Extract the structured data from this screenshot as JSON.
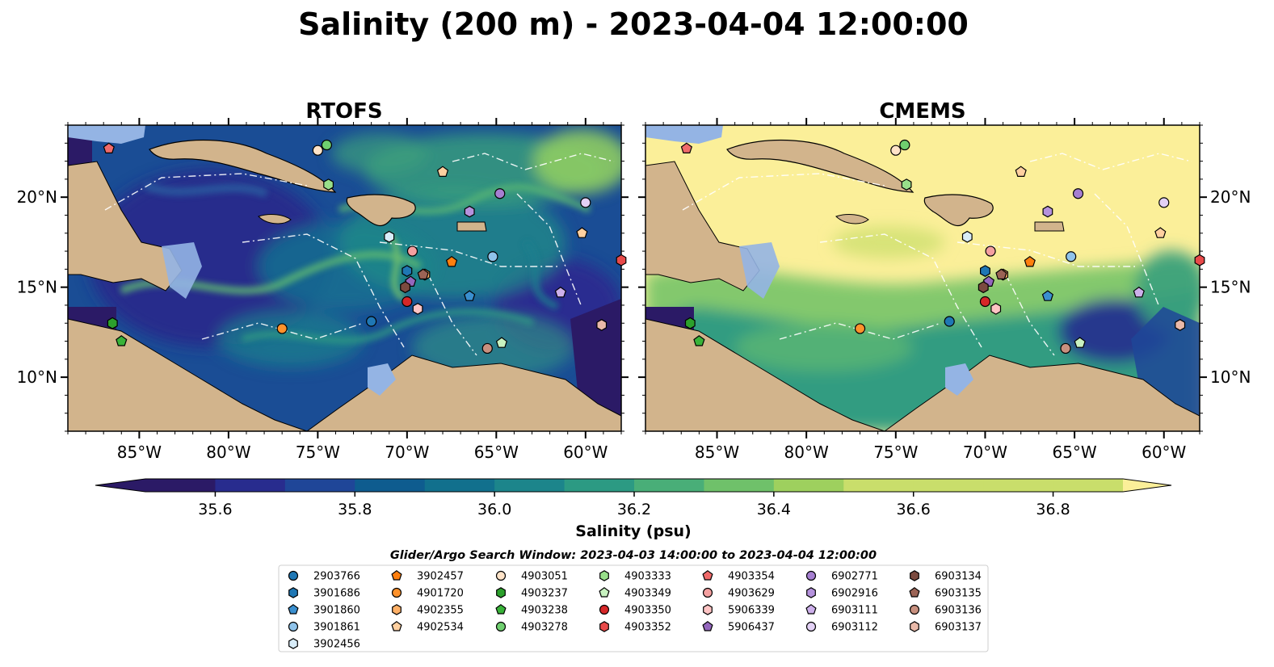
{
  "figure": {
    "title": "Salinity (200 m) - 2023-04-04 12:00:00",
    "search_window": "Glider/Argo Search Window: 2023-04-03 14:00:00 to 2023-04-04 12:00:00"
  },
  "colors": {
    "land": "#d2b48c",
    "shelf": "#94b4e4",
    "colormap": [
      "#2b1a66",
      "#282c8e",
      "#1f4698",
      "#0e5c8f",
      "#11708d",
      "#1c858b",
      "#2c9a83",
      "#49ae78",
      "#6fc16a",
      "#9ed05e",
      "#c9de6b",
      "#fbef99"
    ]
  },
  "chart_data": [
    {
      "type": "heatmap",
      "title": "RTOFS",
      "lon_range": [
        -89,
        -58
      ],
      "lat_range": [
        7,
        24
      ],
      "x_ticks": [
        "85°W",
        "80°W",
        "75°W",
        "70°W",
        "65°W",
        "60°W"
      ],
      "y_ticks": [
        "10°N",
        "15°N",
        "20°N"
      ],
      "dominant_field": "low salinity (35.6–36.3 psu) across the Caribbean basin"
    },
    {
      "type": "heatmap",
      "title": "CMEMS",
      "lon_range": [
        -89,
        -58
      ],
      "lat_range": [
        7,
        24
      ],
      "x_ticks": [
        "85°W",
        "80°W",
        "75°W",
        "70°W",
        "65°W",
        "60°W"
      ],
      "y_ticks": [
        "10°N",
        "15°N",
        "20°N"
      ],
      "dominant_field": "high salinity (≥36.8 psu) in the north, 36.2–36.6 psu in the south"
    }
  ],
  "colorbar": {
    "label": "Salinity (psu)",
    "min": 35.5,
    "max": 36.9,
    "step": 0.1,
    "ticks": [
      "35.6",
      "35.8",
      "36.0",
      "36.2",
      "36.4",
      "36.6",
      "36.8"
    ],
    "extend": "both"
  },
  "floats": [
    {
      "id": "2903766",
      "lon": -72.0,
      "lat": 13.1,
      "color": "#1f77b4",
      "marker": "circle"
    },
    {
      "id": "3901686",
      "lon": -70.0,
      "lat": 15.9,
      "color": "#1f77b4",
      "marker": "hexagon"
    },
    {
      "id": "3901860",
      "lon": -66.5,
      "lat": 14.5,
      "color": "#3a8fcf",
      "marker": "pentagon"
    },
    {
      "id": "3901861",
      "lon": -65.2,
      "lat": 16.7,
      "color": "#8fc3ea",
      "marker": "circle"
    },
    {
      "id": "3902456",
      "lon": -71.0,
      "lat": 17.8,
      "color": "#d8ecf8",
      "marker": "hexagon"
    },
    {
      "id": "3902457",
      "lon": -67.5,
      "lat": 16.4,
      "color": "#ff7f0e",
      "marker": "pentagon"
    },
    {
      "id": "4901720",
      "lon": -77.0,
      "lat": 12.7,
      "color": "#ff922b",
      "marker": "circle"
    },
    {
      "id": "4902355",
      "lon": -69.0,
      "lat": 15.7,
      "color": "#ffb066",
      "marker": "hexagon"
    },
    {
      "id": "4902534",
      "lon": -68.0,
      "lat": 21.4,
      "color": "#ffd0a0",
      "marker": "pentagon"
    },
    {
      "id": "4903051",
      "lon": -75.0,
      "lat": 22.6,
      "color": "#ffe3c8",
      "marker": "circle"
    },
    {
      "id": "4903237",
      "lon": -86.5,
      "lat": 13.0,
      "color": "#2ca02c",
      "marker": "hexagon"
    },
    {
      "id": "4903238",
      "lon": -86.0,
      "lat": 12.0,
      "color": "#39b339",
      "marker": "pentagon"
    },
    {
      "id": "4903278",
      "lon": -74.5,
      "lat": 22.9,
      "color": "#6fcf6f",
      "marker": "circle"
    },
    {
      "id": "4903333",
      "lon": -74.4,
      "lat": 20.7,
      "color": "#98df8a",
      "marker": "hexagon"
    },
    {
      "id": "4903349",
      "lon": -64.7,
      "lat": 11.9,
      "color": "#c8f2c0",
      "marker": "pentagon"
    },
    {
      "id": "4903350",
      "lon": -70.0,
      "lat": 14.2,
      "color": "#d62728",
      "marker": "circle"
    },
    {
      "id": "4903352",
      "lon": -58.0,
      "lat": 16.5,
      "color": "#e84a4a",
      "marker": "hexagon"
    },
    {
      "id": "4903354",
      "lon": -86.7,
      "lat": 22.7,
      "color": "#f06a6a",
      "marker": "pentagon"
    },
    {
      "id": "4903629",
      "lon": -69.7,
      "lat": 17.0,
      "color": "#f4a0a0",
      "marker": "circle"
    },
    {
      "id": "5906339",
      "lon": -69.4,
      "lat": 13.8,
      "color": "#ffc4c4",
      "marker": "hexagon"
    },
    {
      "id": "5906437",
      "lon": -69.8,
      "lat": 15.3,
      "color": "#9467bd",
      "marker": "pentagon"
    },
    {
      "id": "6902771",
      "lon": -64.8,
      "lat": 20.2,
      "color": "#a67fd1",
      "marker": "circle"
    },
    {
      "id": "6902916",
      "lon": -66.5,
      "lat": 19.2,
      "color": "#b592dd",
      "marker": "hexagon"
    },
    {
      "id": "6903111",
      "lon": -61.4,
      "lat": 14.7,
      "color": "#cdb0eb",
      "marker": "pentagon"
    },
    {
      "id": "6903112",
      "lon": -60.0,
      "lat": 19.7,
      "color": "#e3d1f5",
      "marker": "circle"
    },
    {
      "id": "6903134",
      "lon": -70.1,
      "lat": 15.0,
      "color": "#7b4a3f",
      "marker": "hexagon"
    },
    {
      "id": "6903135",
      "lon": -69.1,
      "lat": 15.7,
      "color": "#9b6355",
      "marker": "pentagon"
    },
    {
      "id": "6903136",
      "lon": -65.5,
      "lat": 11.6,
      "color": "#c8907f",
      "marker": "circle"
    },
    {
      "id": "6903137",
      "lon": -59.1,
      "lat": 12.9,
      "color": "#e9b9a9",
      "marker": "hexagon"
    }
  ],
  "extra_marks": [
    {
      "lon": -60.2,
      "lat": 18.0,
      "color": "#ffd0a0",
      "marker": "pentagon"
    }
  ]
}
